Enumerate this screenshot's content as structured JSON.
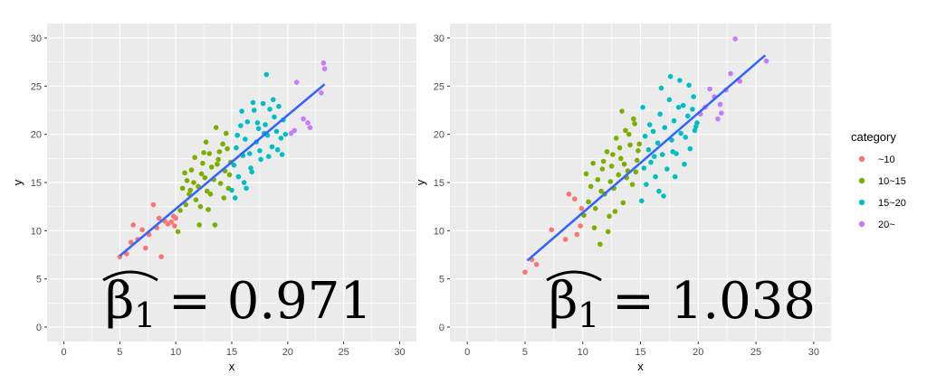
{
  "chart_data": [
    {
      "type": "scatter",
      "title": "",
      "xlabel": "x",
      "ylabel": "y",
      "xlim": [
        -1.5,
        31.5
      ],
      "ylim": [
        -1.5,
        31.5
      ],
      "xticks": [
        "0",
        "5",
        "10",
        "15",
        "20",
        "25",
        "30"
      ],
      "yticks": [
        "0",
        "5",
        "10",
        "15",
        "20",
        "25",
        "30"
      ],
      "grid": true,
      "fit_line": {
        "x": [
          5,
          23.3
        ],
        "y": [
          7.4,
          25.2
        ],
        "color": "#3366FF"
      },
      "annotation": "= 0.971",
      "series": [
        {
          "name": "~10",
          "color": "#F8766D",
          "points": [
            [
              5.0,
              7.3
            ],
            [
              5.6,
              7.6
            ],
            [
              6.0,
              8.8
            ],
            [
              6.2,
              10.6
            ],
            [
              6.6,
              9.1
            ],
            [
              7.0,
              10.1
            ],
            [
              7.3,
              8.2
            ],
            [
              7.6,
              9.6
            ],
            [
              8.0,
              12.7
            ],
            [
              8.3,
              10.3
            ],
            [
              8.5,
              11.3
            ],
            [
              8.7,
              7.3
            ],
            [
              9.0,
              11.0
            ],
            [
              9.3,
              10.7
            ],
            [
              9.6,
              10.9
            ],
            [
              9.8,
              11.5
            ],
            [
              10.0,
              11.3
            ],
            [
              9.9,
              10.5
            ]
          ]
        },
        {
          "name": "10~15",
          "color": "#7CAE00",
          "points": [
            [
              10.2,
              9.9
            ],
            [
              10.4,
              12.1
            ],
            [
              10.6,
              14.4
            ],
            [
              10.8,
              16.0
            ],
            [
              11.0,
              15.2
            ],
            [
              11.2,
              13.8
            ],
            [
              11.4,
              16.3
            ],
            [
              11.6,
              15.0
            ],
            [
              11.8,
              13.2
            ],
            [
              12.0,
              14.6
            ],
            [
              12.2,
              12.5
            ],
            [
              12.4,
              17.0
            ],
            [
              12.6,
              15.5
            ],
            [
              12.8,
              14.1
            ],
            [
              13.0,
              18.0
            ],
            [
              13.2,
              16.6
            ],
            [
              13.4,
              15.3
            ],
            [
              13.6,
              20.7
            ],
            [
              13.8,
              17.4
            ],
            [
              14.0,
              14.9
            ],
            [
              14.2,
              19.0
            ],
            [
              14.4,
              16.2
            ],
            [
              14.6,
              18.5
            ],
            [
              14.8,
              15.8
            ],
            [
              12.1,
              10.6
            ],
            [
              12.9,
              12.2
            ],
            [
              13.5,
              10.6
            ],
            [
              14.3,
              13.4
            ],
            [
              11.7,
              17.6
            ],
            [
              12.7,
              19.2
            ],
            [
              13.9,
              18.2
            ],
            [
              14.5,
              20.1
            ],
            [
              14.9,
              17.1
            ],
            [
              11.3,
              14.2
            ],
            [
              12.3,
              15.9
            ],
            [
              13.1,
              13.8
            ],
            [
              13.7,
              16.9
            ],
            [
              14.7,
              14.4
            ],
            [
              10.9,
              12.7
            ],
            [
              12.5,
              18.1
            ]
          ]
        },
        {
          "name": "15~20",
          "color": "#00BFC4",
          "points": [
            [
              15.0,
              14.2
            ],
            [
              15.2,
              16.8
            ],
            [
              15.4,
              18.6
            ],
            [
              15.6,
              15.6
            ],
            [
              15.8,
              20.9
            ],
            [
              16.0,
              17.8
            ],
            [
              16.2,
              19.5
            ],
            [
              16.4,
              21.3
            ],
            [
              16.6,
              18.0
            ],
            [
              16.8,
              16.1
            ],
            [
              17.0,
              22.5
            ],
            [
              17.2,
              19.2
            ],
            [
              17.4,
              20.6
            ],
            [
              17.6,
              17.4
            ],
            [
              17.8,
              23.2
            ],
            [
              18.0,
              21.0
            ],
            [
              18.2,
              19.9
            ],
            [
              18.4,
              22.6
            ],
            [
              18.6,
              18.7
            ],
            [
              18.8,
              21.8
            ],
            [
              19.0,
              20.3
            ],
            [
              19.2,
              22.9
            ],
            [
              19.4,
              19.6
            ],
            [
              19.6,
              21.5
            ],
            [
              19.8,
              20.0
            ],
            [
              15.3,
              13.4
            ],
            [
              16.1,
              15.0
            ],
            [
              16.7,
              16.5
            ],
            [
              17.5,
              18.3
            ],
            [
              18.1,
              26.2
            ],
            [
              15.9,
              22.4
            ],
            [
              16.9,
              23.3
            ],
            [
              18.3,
              17.7
            ],
            [
              19.1,
              18.4
            ],
            [
              17.3,
              21.2
            ],
            [
              15.5,
              19.9
            ],
            [
              16.3,
              14.4
            ],
            [
              18.7,
              23.6
            ],
            [
              19.5,
              17.9
            ],
            [
              17.9,
              20.1
            ]
          ]
        },
        {
          "name": "20~",
          "color": "#C77CFF",
          "points": [
            [
              20.3,
              20.1
            ],
            [
              20.6,
              20.4
            ],
            [
              20.8,
              25.4
            ],
            [
              21.4,
              21.6
            ],
            [
              21.8,
              21.2
            ],
            [
              22.0,
              20.7
            ],
            [
              23.0,
              24.3
            ],
            [
              23.2,
              27.4
            ],
            [
              23.3,
              26.8
            ]
          ]
        }
      ]
    },
    {
      "type": "scatter",
      "title": "",
      "xlabel": "x",
      "ylabel": "y",
      "xlim": [
        -1.5,
        31.5
      ],
      "ylim": [
        -1.5,
        31.5
      ],
      "xticks": [
        "0",
        "5",
        "10",
        "15",
        "20",
        "25",
        "30"
      ],
      "yticks": [
        "0",
        "5",
        "10",
        "15",
        "20",
        "25",
        "30"
      ],
      "grid": true,
      "fit_line": {
        "x": [
          5.2,
          25.8
        ],
        "y": [
          6.9,
          28.2
        ],
        "color": "#3366FF"
      },
      "annotation": "= 1.038",
      "series": [
        {
          "name": "~10",
          "color": "#F8766D",
          "points": [
            [
              5.0,
              5.7
            ],
            [
              5.6,
              7.0
            ],
            [
              6.0,
              6.5
            ],
            [
              7.3,
              10.1
            ],
            [
              8.5,
              9.1
            ],
            [
              8.8,
              13.8
            ],
            [
              9.3,
              13.3
            ],
            [
              9.5,
              9.6
            ],
            [
              9.8,
              10.5
            ],
            [
              9.9,
              12.3
            ]
          ]
        },
        {
          "name": "10~15",
          "color": "#7CAE00",
          "points": [
            [
              10.1,
              11.6
            ],
            [
              10.3,
              15.9
            ],
            [
              10.5,
              13.0
            ],
            [
              10.7,
              14.6
            ],
            [
              10.9,
              17.0
            ],
            [
              11.1,
              12.3
            ],
            [
              11.3,
              15.3
            ],
            [
              11.5,
              8.6
            ],
            [
              11.7,
              16.4
            ],
            [
              11.9,
              13.8
            ],
            [
              12.1,
              18.2
            ],
            [
              12.3,
              11.5
            ],
            [
              12.5,
              16.7
            ],
            [
              12.7,
              14.4
            ],
            [
              12.9,
              19.6
            ],
            [
              13.1,
              15.8
            ],
            [
              13.3,
              17.5
            ],
            [
              13.5,
              12.9
            ],
            [
              13.7,
              20.4
            ],
            [
              13.9,
              16.2
            ],
            [
              14.1,
              18.9
            ],
            [
              14.3,
              14.8
            ],
            [
              14.5,
              21.1
            ],
            [
              14.7,
              17.3
            ],
            [
              14.9,
              19.0
            ],
            [
              11.0,
              10.3
            ],
            [
              12.2,
              9.9
            ],
            [
              13.4,
              22.4
            ],
            [
              14.4,
              21.6
            ],
            [
              12.6,
              17.9
            ],
            [
              13.8,
              15.5
            ],
            [
              11.6,
              14.1
            ],
            [
              14.0,
              20.0
            ],
            [
              12.8,
              12.0
            ],
            [
              13.2,
              18.6
            ],
            [
              14.6,
              16.1
            ],
            [
              11.8,
              17.2
            ],
            [
              12.4,
              15.1
            ],
            [
              13.6,
              16.9
            ],
            [
              14.8,
              18.3
            ]
          ]
        },
        {
          "name": "15~20",
          "color": "#00BFC4",
          "points": [
            [
              15.1,
              13.1
            ],
            [
              15.3,
              16.5
            ],
            [
              15.5,
              14.8
            ],
            [
              15.7,
              18.4
            ],
            [
              15.9,
              17.1
            ],
            [
              16.1,
              20.3
            ],
            [
              16.3,
              15.6
            ],
            [
              16.5,
              19.1
            ],
            [
              16.7,
              22.1
            ],
            [
              16.9,
              17.9
            ],
            [
              17.1,
              20.7
            ],
            [
              17.3,
              16.4
            ],
            [
              17.5,
              23.6
            ],
            [
              17.7,
              19.4
            ],
            [
              17.9,
              21.4
            ],
            [
              18.1,
              18.0
            ],
            [
              18.3,
              22.8
            ],
            [
              18.5,
              20.1
            ],
            [
              18.7,
              23.0
            ],
            [
              18.9,
              19.7
            ],
            [
              19.1,
              21.9
            ],
            [
              19.3,
              18.5
            ],
            [
              19.5,
              22.6
            ],
            [
              19.7,
              20.4
            ],
            [
              19.9,
              21.2
            ],
            [
              15.2,
              22.8
            ],
            [
              16.6,
              14.1
            ],
            [
              17.6,
              26.0
            ],
            [
              18.4,
              25.6
            ],
            [
              17.0,
              13.6
            ],
            [
              16.2,
              17.7
            ],
            [
              18.8,
              16.9
            ],
            [
              19.6,
              23.9
            ],
            [
              15.8,
              21.0
            ],
            [
              17.8,
              18.2
            ],
            [
              16.8,
              24.8
            ],
            [
              19.2,
              25.1
            ],
            [
              15.4,
              19.8
            ],
            [
              18.0,
              15.6
            ],
            [
              19.8,
              20.8
            ]
          ]
        },
        {
          "name": "20~",
          "color": "#C77CFF",
          "points": [
            [
              20.2,
              22.1
            ],
            [
              20.6,
              22.8
            ],
            [
              21.0,
              24.7
            ],
            [
              21.4,
              23.9
            ],
            [
              21.7,
              21.6
            ],
            [
              21.9,
              23.1
            ],
            [
              22.0,
              22.2
            ],
            [
              22.4,
              24.6
            ],
            [
              22.8,
              26.3
            ],
            [
              23.2,
              29.9
            ],
            [
              23.6,
              25.5
            ],
            [
              25.9,
              27.6
            ]
          ]
        }
      ]
    }
  ],
  "legend": {
    "title": "category",
    "items": [
      {
        "label": "~10",
        "color": "#F8766D"
      },
      {
        "label": "10~15",
        "color": "#7CAE00"
      },
      {
        "label": "15~20",
        "color": "#00BFC4"
      },
      {
        "label": "20~",
        "color": "#C77CFF"
      }
    ]
  }
}
